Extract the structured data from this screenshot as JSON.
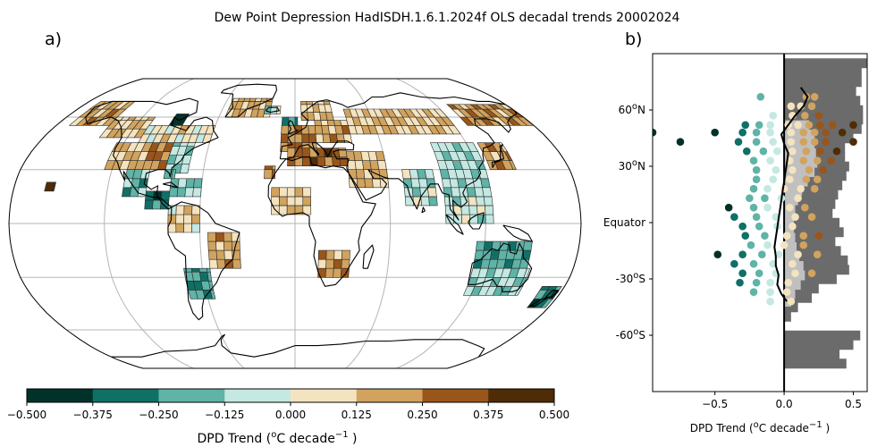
{
  "figure": {
    "title": "Dew Point Depression HadISDH.1.6.1.2024f OLS decadal trends 20002024",
    "panel_a": "a)",
    "panel_b": "b)"
  },
  "colorbar": {
    "label_main": "DPD Trend (",
    "label_deg": "o",
    "label_unit": "C decade",
    "label_exp": "−1",
    "label_end": " )",
    "ticks": [
      "-0.500",
      "-0.375",
      "-0.250",
      "-0.125",
      "0.000",
      "0.125",
      "0.250",
      "0.375",
      "0.500"
    ],
    "colors": [
      "#01322a",
      "#0f7066",
      "#5fb3a7",
      "#c4e8e2",
      "#f4e3bf",
      "#d1a35e",
      "#99561a",
      "#4e2c06"
    ]
  },
  "chart_data": [
    {
      "type": "map",
      "panel": "a)",
      "projection": "Robinson",
      "grid": true,
      "cell_size_deg": 5,
      "bins": [
        -0.5,
        -0.375,
        -0.25,
        -0.125,
        0.0,
        0.125,
        0.25,
        0.375,
        0.5
      ],
      "regions": [
        {
          "name": "Alaska",
          "lon": [
            -170,
            -140
          ],
          "lat": [
            55,
            70
          ],
          "trend": 0.18
        },
        {
          "name": "Western Canada",
          "lon": [
            -140,
            -110
          ],
          "lat": [
            48,
            60
          ],
          "trend": 0.13
        },
        {
          "name": "Eastern Canada",
          "lon": [
            -110,
            -60
          ],
          "lat": [
            45,
            55
          ],
          "trend": 0.05
        },
        {
          "name": "Hudson Bay",
          "lon": [
            -95,
            -85
          ],
          "lat": [
            55,
            62
          ],
          "trend": -0.45
        },
        {
          "name": "Western USA",
          "lon": [
            -125,
            -100
          ],
          "lat": [
            30,
            45
          ],
          "trend": 0.15
        },
        {
          "name": "Central USA",
          "lon": [
            -100,
            -85
          ],
          "lat": [
            30,
            45
          ],
          "trend": 0.28
        },
        {
          "name": "Eastern USA",
          "lon": [
            -85,
            -70
          ],
          "lat": [
            28,
            45
          ],
          "trend": -0.08
        },
        {
          "name": "Florida",
          "lon": [
            -85,
            -78
          ],
          "lat": [
            25,
            30
          ],
          "trend": -0.2
        },
        {
          "name": "Mexico",
          "lon": [
            -110,
            -95
          ],
          "lat": [
            15,
            30
          ],
          "trend": -0.18
        },
        {
          "name": "Central America",
          "lon": [
            -95,
            -80
          ],
          "lat": [
            8,
            18
          ],
          "trend": -0.3
        },
        {
          "name": "Caribbean",
          "lon": [
            -80,
            -60
          ],
          "lat": [
            15,
            25
          ],
          "trend": -0.15
        },
        {
          "name": "Northern South America",
          "lon": [
            -80,
            -60
          ],
          "lat": [
            -5,
            10
          ],
          "trend": 0.06
        },
        {
          "name": "Brazil",
          "lon": [
            -55,
            -35
          ],
          "lat": [
            -25,
            -5
          ],
          "trend": 0.18
        },
        {
          "name": "Southern South America",
          "lon": [
            -72,
            -55
          ],
          "lat": [
            -42,
            -25
          ],
          "trend": -0.22
        },
        {
          "name": "Greenland",
          "lon": [
            -55,
            -20
          ],
          "lat": [
            60,
            72
          ],
          "trend": 0.16
        },
        {
          "name": "Iceland",
          "lon": [
            -25,
            -12
          ],
          "lat": [
            62,
            67
          ],
          "trend": -0.05
        },
        {
          "name": "British Isles",
          "lon": [
            -10,
            2
          ],
          "lat": [
            50,
            60
          ],
          "trend": -0.3
        },
        {
          "name": "Scandinavia",
          "lon": [
            5,
            30
          ],
          "lat": [
            58,
            70
          ],
          "trend": 0.12
        },
        {
          "name": "Western Europe",
          "lon": [
            -10,
            15
          ],
          "lat": [
            40,
            55
          ],
          "trend": 0.22
        },
        {
          "name": "Eastern Europe",
          "lon": [
            15,
            40
          ],
          "lat": [
            45,
            58
          ],
          "trend": 0.18
        },
        {
          "name": "Mediterranean",
          "lon": [
            -5,
            35
          ],
          "lat": [
            32,
            42
          ],
          "trend": 0.3
        },
        {
          "name": "West Africa",
          "lon": [
            -15,
            10
          ],
          "lat": [
            5,
            20
          ],
          "trend": 0.1
        },
        {
          "name": "Southern Africa",
          "lon": [
            15,
            35
          ],
          "lat": [
            -30,
            -15
          ],
          "trend": 0.2
        },
        {
          "name": "Russia",
          "lon": [
            40,
            120
          ],
          "lat": [
            50,
            65
          ],
          "trend": 0.12
        },
        {
          "name": "Middle East",
          "lon": [
            35,
            60
          ],
          "lat": [
            20,
            40
          ],
          "trend": 0.15
        },
        {
          "name": "India",
          "lon": [
            70,
            90
          ],
          "lat": [
            10,
            30
          ],
          "trend": -0.06
        },
        {
          "name": "China",
          "lon": [
            95,
            125
          ],
          "lat": [
            20,
            45
          ],
          "trend": -0.08
        },
        {
          "name": "Japan",
          "lon": [
            128,
            145
          ],
          "lat": [
            30,
            45
          ],
          "trend": 0.2
        },
        {
          "name": "East Siberia",
          "lon": [
            130,
            180
          ],
          "lat": [
            55,
            68
          ],
          "trend": 0.2
        },
        {
          "name": "Southeast Asia",
          "lon": [
            95,
            125
          ],
          "lat": [
            0,
            20
          ],
          "trend": -0.07
        },
        {
          "name": "Northern Australia",
          "lon": [
            115,
            150
          ],
          "lat": [
            -25,
            -10
          ],
          "trend": -0.22
        },
        {
          "name": "Southern Australia",
          "lon": [
            115,
            152
          ],
          "lat": [
            -40,
            -25
          ],
          "trend": -0.1
        },
        {
          "name": "New Zealand",
          "lon": [
            165,
            178
          ],
          "lat": [
            -47,
            -35
          ],
          "trend": -0.3
        },
        {
          "name": "Hawaii",
          "lon": [
            -160,
            -154
          ],
          "lat": [
            18,
            23
          ],
          "trend": 0.4
        },
        {
          "name": "Canary Islands",
          "lon": [
            -20,
            -13
          ],
          "lat": [
            25,
            32
          ],
          "trend": 0.25
        }
      ]
    },
    {
      "type": "scatter",
      "panel": "b)",
      "xlabel": "DPD Trend (°C decade⁻¹ )",
      "xlim": [
        -0.95,
        0.6
      ],
      "ylim": [
        -90,
        90
      ],
      "xticks": [
        -0.5,
        0.0,
        0.5
      ],
      "xtick_labels": [
        "−0.5",
        "0.0",
        "0.5"
      ],
      "yticks": [
        60,
        30,
        0,
        -30,
        -60
      ],
      "ytick_labels": [
        {
          "lead": "60",
          "deg": "o",
          "tail": "N"
        },
        {
          "lead": "30",
          "deg": "o",
          "tail": "N"
        },
        {
          "lead": "Equator",
          "deg": "",
          "tail": ""
        },
        {
          "lead": "-30",
          "deg": "o",
          "tail": "S"
        },
        {
          "lead": "-60",
          "deg": "o",
          "tail": "S"
        }
      ],
      "zonal_mean": {
        "lat": [
          -42,
          -38,
          -33,
          -28,
          -23,
          -18,
          -13,
          -8,
          -3,
          2,
          7,
          12,
          17,
          22,
          27,
          32,
          37,
          42,
          47,
          52,
          57,
          62,
          67,
          72
        ],
        "value": [
          0.02,
          -0.02,
          -0.05,
          -0.04,
          -0.06,
          -0.06,
          -0.07,
          -0.06,
          -0.05,
          -0.04,
          -0.03,
          -0.02,
          -0.01,
          0.0,
          0.01,
          0.02,
          0.03,
          0.0,
          -0.02,
          0.03,
          0.08,
          0.14,
          0.17,
          0.12
        ]
      },
      "land_fraction": {
        "lat": [
          -75,
          -70,
          -65,
          -60,
          -55,
          -50,
          -45,
          -40,
          -35,
          -30,
          -25,
          -20,
          -15,
          -10,
          -5,
          0,
          5,
          10,
          15,
          20,
          25,
          30,
          35,
          40,
          45,
          50,
          55,
          60,
          65,
          70,
          75,
          80,
          85
        ],
        "value": [
          0.45,
          0.4,
          0.5,
          0.55,
          0.0,
          0.05,
          0.1,
          0.2,
          0.25,
          0.38,
          0.47,
          0.46,
          0.41,
          0.37,
          0.43,
          0.4,
          0.35,
          0.37,
          0.39,
          0.42,
          0.45,
          0.47,
          0.44,
          0.44,
          0.5,
          0.56,
          0.57,
          0.57,
          0.55,
          0.52,
          0.56,
          0.56,
          0.6
        ]
      },
      "observed_fraction": {
        "lat": [
          -42,
          -38,
          -33,
          -28,
          -23,
          -18,
          -13,
          -8,
          -3,
          2,
          7,
          12,
          17,
          22,
          27,
          32,
          37,
          42,
          47,
          52
        ],
        "value": [
          0.05,
          0.08,
          0.12,
          0.15,
          0.14,
          0.11,
          0.09,
          0.08,
          0.07,
          0.07,
          0.08,
          0.1,
          0.13,
          0.17,
          0.22,
          0.24,
          0.23,
          0.22,
          0.22,
          0.18
        ]
      },
      "points": [
        {
          "lat": 67,
          "x": -0.17
        },
        {
          "lat": 67,
          "x": 0.16
        },
        {
          "lat": 67,
          "x": 0.22
        },
        {
          "lat": 62,
          "x": 0.05
        },
        {
          "lat": 62,
          "x": 0.12
        },
        {
          "lat": 62,
          "x": 0.2
        },
        {
          "lat": 57,
          "x": -0.08
        },
        {
          "lat": 57,
          "x": 0.06
        },
        {
          "lat": 57,
          "x": 0.15
        },
        {
          "lat": 57,
          "x": 0.25
        },
        {
          "lat": 52,
          "x": -0.28
        },
        {
          "lat": 52,
          "x": -0.18
        },
        {
          "lat": 52,
          "x": -0.1
        },
        {
          "lat": 52,
          "x": 0.03
        },
        {
          "lat": 52,
          "x": 0.1
        },
        {
          "lat": 52,
          "x": 0.18
        },
        {
          "lat": 52,
          "x": 0.26
        },
        {
          "lat": 52,
          "x": 0.35
        },
        {
          "lat": 52,
          "x": 0.5
        },
        {
          "lat": 48,
          "x": -0.95
        },
        {
          "lat": 48,
          "x": -0.5
        },
        {
          "lat": 48,
          "x": -0.3
        },
        {
          "lat": 48,
          "x": -0.2
        },
        {
          "lat": 48,
          "x": -0.1
        },
        {
          "lat": 48,
          "x": 0.05
        },
        {
          "lat": 48,
          "x": 0.14
        },
        {
          "lat": 48,
          "x": 0.22
        },
        {
          "lat": 48,
          "x": 0.3
        },
        {
          "lat": 48,
          "x": 0.42
        },
        {
          "lat": 43,
          "x": -0.75
        },
        {
          "lat": 43,
          "x": -0.33
        },
        {
          "lat": 43,
          "x": -0.2
        },
        {
          "lat": 43,
          "x": -0.08
        },
        {
          "lat": 43,
          "x": 0.05
        },
        {
          "lat": 43,
          "x": 0.14
        },
        {
          "lat": 43,
          "x": 0.22
        },
        {
          "lat": 43,
          "x": 0.3
        },
        {
          "lat": 43,
          "x": 0.5
        },
        {
          "lat": 38,
          "x": -0.27
        },
        {
          "lat": 38,
          "x": -0.15
        },
        {
          "lat": 38,
          "x": -0.05
        },
        {
          "lat": 38,
          "x": 0.06
        },
        {
          "lat": 38,
          "x": 0.16
        },
        {
          "lat": 38,
          "x": 0.26
        },
        {
          "lat": 38,
          "x": 0.38
        },
        {
          "lat": 33,
          "x": -0.22
        },
        {
          "lat": 33,
          "x": -0.1
        },
        {
          "lat": 33,
          "x": 0.04
        },
        {
          "lat": 33,
          "x": 0.14
        },
        {
          "lat": 33,
          "x": 0.24
        },
        {
          "lat": 33,
          "x": 0.34
        },
        {
          "lat": 28,
          "x": -0.2
        },
        {
          "lat": 28,
          "x": -0.06
        },
        {
          "lat": 28,
          "x": 0.06
        },
        {
          "lat": 28,
          "x": 0.18
        },
        {
          "lat": 28,
          "x": 0.28
        },
        {
          "lat": 23,
          "x": -0.2
        },
        {
          "lat": 23,
          "x": -0.08
        },
        {
          "lat": 23,
          "x": 0.04
        },
        {
          "lat": 23,
          "x": 0.16
        },
        {
          "lat": 23,
          "x": 0.24
        },
        {
          "lat": 18,
          "x": -0.22
        },
        {
          "lat": 18,
          "x": -0.12
        },
        {
          "lat": 18,
          "x": 0.0
        },
        {
          "lat": 18,
          "x": 0.12
        },
        {
          "lat": 18,
          "x": 0.22
        },
        {
          "lat": 13,
          "x": -0.25
        },
        {
          "lat": 13,
          "x": -0.14
        },
        {
          "lat": 13,
          "x": -0.02
        },
        {
          "lat": 13,
          "x": 0.1
        },
        {
          "lat": 8,
          "x": -0.4
        },
        {
          "lat": 8,
          "x": -0.22
        },
        {
          "lat": 8,
          "x": -0.12
        },
        {
          "lat": 8,
          "x": 0.04
        },
        {
          "lat": 8,
          "x": 0.15
        },
        {
          "lat": 3,
          "x": -0.36
        },
        {
          "lat": 3,
          "x": -0.2
        },
        {
          "lat": 3,
          "x": -0.06
        },
        {
          "lat": 3,
          "x": 0.08
        },
        {
          "lat": 3,
          "x": 0.2
        },
        {
          "lat": -2,
          "x": -0.3
        },
        {
          "lat": -2,
          "x": -0.18
        },
        {
          "lat": -2,
          "x": -0.05
        },
        {
          "lat": -2,
          "x": 0.06
        },
        {
          "lat": -7,
          "x": -0.28
        },
        {
          "lat": -7,
          "x": -0.14
        },
        {
          "lat": -7,
          "x": 0.02
        },
        {
          "lat": -7,
          "x": 0.14
        },
        {
          "lat": -7,
          "x": 0.25
        },
        {
          "lat": -12,
          "x": -0.24
        },
        {
          "lat": -12,
          "x": -0.12
        },
        {
          "lat": -12,
          "x": 0.0
        },
        {
          "lat": -12,
          "x": 0.14
        },
        {
          "lat": -17,
          "x": -0.48
        },
        {
          "lat": -17,
          "x": -0.3
        },
        {
          "lat": -17,
          "x": -0.16
        },
        {
          "lat": -17,
          "x": -0.04
        },
        {
          "lat": -17,
          "x": 0.1
        },
        {
          "lat": -17,
          "x": 0.24
        },
        {
          "lat": -22,
          "x": -0.36
        },
        {
          "lat": -22,
          "x": -0.22
        },
        {
          "lat": -22,
          "x": -0.08
        },
        {
          "lat": -22,
          "x": 0.06
        },
        {
          "lat": -27,
          "x": -0.3
        },
        {
          "lat": -27,
          "x": -0.18
        },
        {
          "lat": -27,
          "x": -0.06
        },
        {
          "lat": -27,
          "x": 0.08
        },
        {
          "lat": -27,
          "x": 0.2
        },
        {
          "lat": -32,
          "x": -0.32
        },
        {
          "lat": -32,
          "x": -0.2
        },
        {
          "lat": -32,
          "x": -0.1
        },
        {
          "lat": -32,
          "x": 0.03
        },
        {
          "lat": -37,
          "x": -0.22
        },
        {
          "lat": -37,
          "x": -0.1
        },
        {
          "lat": -37,
          "x": 0.02
        },
        {
          "lat": -42,
          "x": -0.1
        },
        {
          "lat": -42,
          "x": 0.05
        }
      ]
    }
  ]
}
